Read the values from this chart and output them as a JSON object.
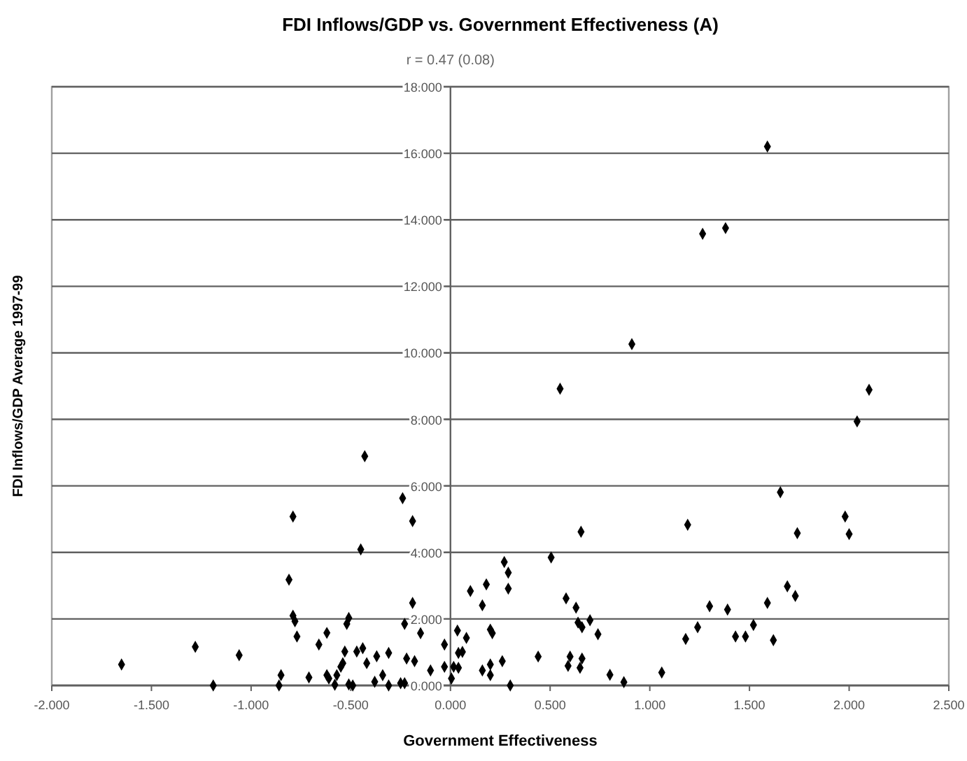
{
  "chart_data": {
    "type": "scatter",
    "title": "FDI Inflows/GDP vs. Government Effectiveness (A)",
    "subtitle": "r = 0.47 (0.08)",
    "xlabel": "Government Effectiveness",
    "ylabel": "FDI Inflows/GDP Average 1997-99",
    "xlim": [
      -2,
      2.5
    ],
    "ylim": [
      0,
      18
    ],
    "xticks": [
      {
        "value": -2,
        "label": "-2.000"
      },
      {
        "value": -1.5,
        "label": "-1.500"
      },
      {
        "value": -1,
        "label": "-1.000"
      },
      {
        "value": -0.5,
        "label": "-0.500"
      },
      {
        "value": 0,
        "label": "0.000"
      },
      {
        "value": 0.5,
        "label": "0.500"
      },
      {
        "value": 1,
        "label": "1.000"
      },
      {
        "value": 1.5,
        "label": "1.500"
      },
      {
        "value": 2,
        "label": "2.000"
      },
      {
        "value": 2.5,
        "label": "2.500"
      }
    ],
    "yticks": [
      {
        "value": 0,
        "label": "0.000"
      },
      {
        "value": 2,
        "label": "2.000"
      },
      {
        "value": 4,
        "label": "4.000"
      },
      {
        "value": 6,
        "label": "6.000"
      },
      {
        "value": 8,
        "label": "8.000"
      },
      {
        "value": 10,
        "label": "10.000"
      },
      {
        "value": 12,
        "label": "12.000"
      },
      {
        "value": 14,
        "label": "14.000"
      },
      {
        "value": 16,
        "label": "16.000"
      },
      {
        "value": 18,
        "label": "18.000"
      }
    ],
    "grid": "y",
    "marker": "diamond",
    "series": [
      {
        "color": "#000000",
        "x": [
          -0.43,
          -0.24,
          -0.19,
          -0.79,
          -0.45,
          -0.81,
          -0.19,
          -0.79,
          -0.78,
          -0.77,
          -0.62,
          -0.66,
          -0.51,
          -0.52,
          -0.23,
          -0.15,
          -0.03,
          0.035,
          -1.28,
          -1.06,
          -1.65,
          -1.19,
          -0.85,
          -0.86,
          -0.71,
          -0.62,
          -0.61,
          -0.57,
          -0.55,
          -0.54,
          -0.53,
          -0.47,
          -0.44,
          -0.42,
          -0.37,
          -0.31,
          -0.22,
          -0.18,
          -0.58,
          -0.51,
          -0.49,
          -0.38,
          -0.34,
          -0.31,
          -0.25,
          -0.23,
          -0.1,
          -0.03,
          0.005,
          0.016,
          0.04,
          1.655,
          1.19,
          0.655,
          1.74,
          1.98,
          2.0,
          0.505,
          0.27,
          0.29,
          0.29,
          0.1,
          0.18,
          0.16,
          0.58,
          0.63,
          0.64,
          0.66,
          0.7,
          0.74,
          0.2,
          0.21,
          0.08,
          0.06,
          0.04,
          0.16,
          0.2,
          0.2,
          0.26,
          0.3,
          0.44,
          0.6,
          0.59,
          0.65,
          0.66,
          0.8,
          0.87,
          1.06,
          1.18,
          1.24,
          1.3,
          1.39,
          1.43,
          1.48,
          1.52,
          1.59,
          1.62,
          1.69,
          1.73,
          1.59,
          1.265,
          1.38,
          0.91,
          0.55,
          2.1,
          2.04
        ],
        "values": [
          6.89,
          5.63,
          4.94,
          5.08,
          4.09,
          3.18,
          2.48,
          2.1,
          1.93,
          1.47,
          1.58,
          1.23,
          2.03,
          1.85,
          1.85,
          1.57,
          1.23,
          1.65,
          1.16,
          0.91,
          0.63,
          0.0,
          0.31,
          0.0,
          0.24,
          0.31,
          0.21,
          0.31,
          0.56,
          0.67,
          1.02,
          1.02,
          1.12,
          0.67,
          0.88,
          0.98,
          0.81,
          0.73,
          0.02,
          0.03,
          0.0,
          0.11,
          0.31,
          0.0,
          0.07,
          0.07,
          0.45,
          0.56,
          0.21,
          0.56,
          0.98,
          5.81,
          4.83,
          4.62,
          4.58,
          5.08,
          4.55,
          3.85,
          3.71,
          3.39,
          2.91,
          2.84,
          3.04,
          2.41,
          2.62,
          2.34,
          1.89,
          1.75,
          1.96,
          1.54,
          1.68,
          1.57,
          1.43,
          1.01,
          0.53,
          0.45,
          0.63,
          0.31,
          0.73,
          0.0,
          0.87,
          0.87,
          0.59,
          0.53,
          0.81,
          0.32,
          0.1,
          0.39,
          1.4,
          1.75,
          2.38,
          2.28,
          1.47,
          1.47,
          1.82,
          2.48,
          1.36,
          2.98,
          2.69,
          16.2,
          13.58,
          13.75,
          10.26,
          8.92,
          8.89,
          7.94
        ]
      }
    ]
  }
}
